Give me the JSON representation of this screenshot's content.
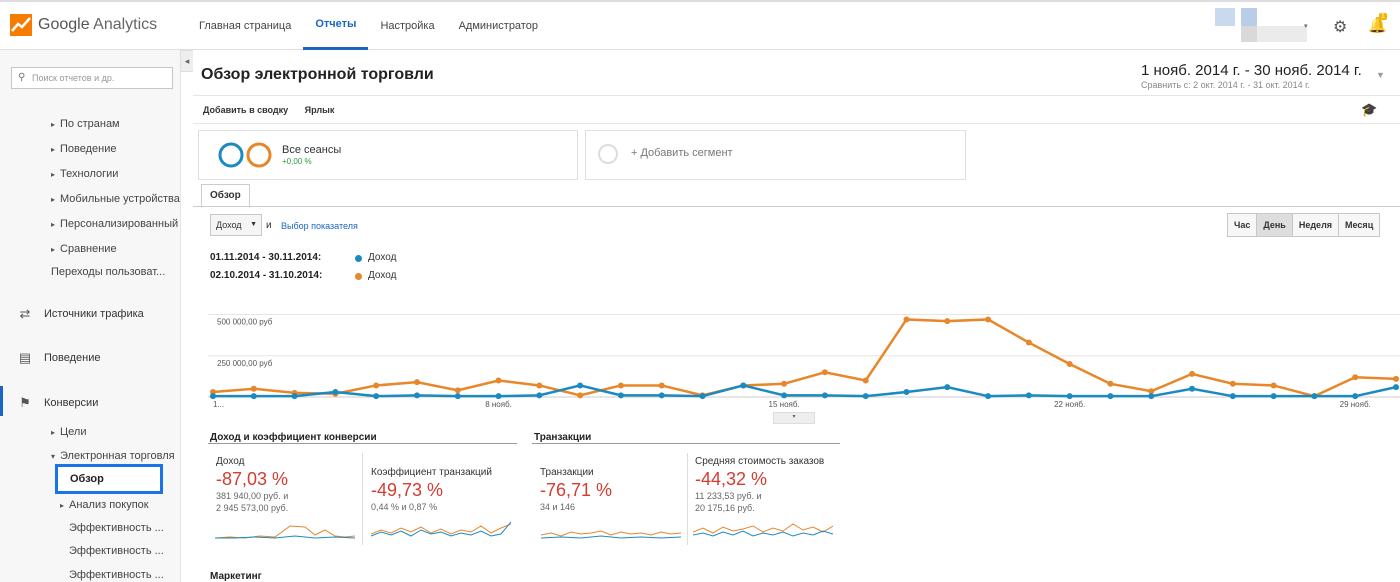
{
  "brand": {
    "name": "Google",
    "product": "Analytics"
  },
  "nav": {
    "items": [
      "Главная страница",
      "Отчеты",
      "Настройка",
      "Администратор"
    ],
    "active_index": 1
  },
  "notifications": {
    "count": "1"
  },
  "sidebar": {
    "search_placeholder": "Поиск отчетов и др.",
    "sub_items_top": [
      "По странам",
      "Поведение",
      "Технологии",
      "Мобильные устройства",
      "Персонализированный",
      "Сравнение"
    ],
    "plain_item": "Переходы пользоват...",
    "sections": [
      "Источники трафика",
      "Поведение",
      "Конверсии"
    ],
    "conv_children": [
      "Цели",
      "Электронная торговля"
    ],
    "selected": "Обзор",
    "ecom_children": [
      "Анализ покупок"
    ],
    "leaves": [
      "Эффективность ...",
      "Эффективность ...",
      "Эффективность ..."
    ]
  },
  "page": {
    "title": "Обзор электронной торговли",
    "date_range": "1 нояб. 2014 г. - 30 нояб. 2014 г.",
    "compare": "Сравнить с: 2 окт. 2014 г. - 31 окт. 2014 г.",
    "actions": [
      "Добавить в сводку",
      "Ярлык"
    ]
  },
  "segments": {
    "all": {
      "title": "Все сеансы",
      "sub": "+0,00 %"
    },
    "add": "+ Добавить сегмент"
  },
  "tab": "Обзор",
  "controls": {
    "metric": "Доход",
    "and": "и",
    "pick": "Выбор показателя",
    "periods": [
      "Час",
      "День",
      "Неделя",
      "Месяц"
    ],
    "active_period": 1
  },
  "legend": [
    {
      "range": "01.11.2014 - 30.11.2014:",
      "name": "Доход",
      "color": "#1b8ac1"
    },
    {
      "range": "02.10.2014 - 31.10.2014:",
      "name": "Доход",
      "color": "#e8862a"
    }
  ],
  "chart_data": {
    "type": "line",
    "y_ticks": [
      "500 000,00 руб",
      "250 000,00 руб"
    ],
    "ylim": [
      0,
      600000
    ],
    "x_tick_labels": [
      "1...",
      "8 нояб.",
      "15 нояб.",
      "22 нояб.",
      "29 нояб."
    ],
    "x_tick_days": [
      1,
      8,
      15,
      22,
      29
    ],
    "x_days": [
      1,
      2,
      3,
      4,
      5,
      6,
      7,
      8,
      9,
      10,
      11,
      12,
      13,
      14,
      15,
      16,
      17,
      18,
      19,
      20,
      21,
      22,
      23,
      24,
      25,
      26,
      27,
      28,
      29,
      30
    ],
    "series": [
      {
        "name": "Доход",
        "color": "#1b8ac1",
        "values": [
          5000,
          5000,
          5000,
          30000,
          5000,
          10000,
          5000,
          5000,
          10000,
          70000,
          10000,
          10000,
          5000,
          70000,
          10000,
          10000,
          5000,
          30000,
          60000,
          5000,
          10000,
          5000,
          5000,
          5000,
          50000,
          5000,
          5000,
          5000,
          5000,
          60000
        ]
      },
      {
        "name": "Доход",
        "color": "#e8862a",
        "values": [
          30000,
          50000,
          25000,
          20000,
          70000,
          90000,
          40000,
          100000,
          70000,
          10000,
          70000,
          70000,
          10000,
          70000,
          80000,
          150000,
          100000,
          470000,
          460000,
          470000,
          330000,
          200000,
          80000,
          35000,
          140000,
          80000,
          70000,
          5000,
          120000,
          110000
        ]
      }
    ]
  },
  "kpi_sections": [
    {
      "title": "Доход и коэффициент конверсии"
    },
    {
      "title": "Транзакции"
    }
  ],
  "kpis": [
    {
      "label": "Доход",
      "value": "-87,03 %",
      "sub1": "381 940,00 руб. и",
      "sub2": "2 945 573,00 руб."
    },
    {
      "label": "Коэффициент транзакций",
      "value": "-49,73 %",
      "sub1": "0,44 % и 0,87 %",
      "sub2": ""
    },
    {
      "label": "Транзакции",
      "value": "-76,71 %",
      "sub1": "34 и 146",
      "sub2": ""
    },
    {
      "label": "Средняя стоимость заказов",
      "value": "-44,32 %",
      "sub1": "11 233,53 руб. и",
      "sub2": "20 175,16 руб."
    }
  ],
  "marketing": "Маркетинг"
}
